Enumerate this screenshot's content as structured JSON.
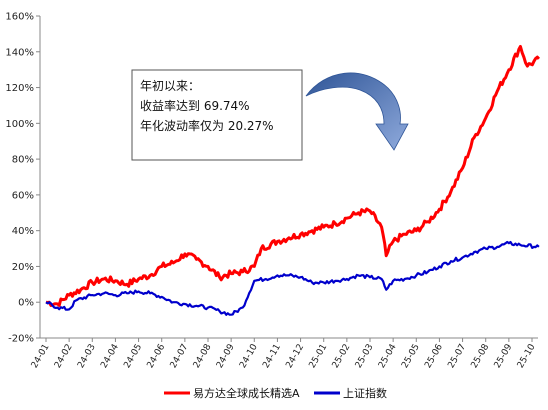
{
  "chart_data": {
    "type": "line",
    "x": [
      "24-01",
      "24-02",
      "24-03",
      "24-04",
      "24-05",
      "24-06",
      "24-07",
      "24-08",
      "24-09",
      "24-10",
      "24-11",
      "24-12",
      "25-01",
      "25-02",
      "25-03",
      "25-04",
      "25-05",
      "25-06",
      "25-07",
      "25-08",
      "25-09",
      "25-10"
    ],
    "ylim": [
      -20,
      160
    ],
    "yticks": [
      -20,
      0,
      20,
      40,
      60,
      80,
      100,
      120,
      140,
      160
    ],
    "ytick_labels": [
      "-20%",
      "0%",
      "20%",
      "40%",
      "60%",
      "80%",
      "100%",
      "120%",
      "140%",
      "160%"
    ],
    "series": [
      {
        "name": "易方达全球成长精选A",
        "color": "#ff0000",
        "values": [
          [
            0,
            0
          ],
          [
            0.5,
            -1
          ],
          [
            1,
            4
          ],
          [
            1.5,
            7
          ],
          [
            2,
            11
          ],
          [
            2.5,
            13
          ],
          [
            3,
            12
          ],
          [
            3.5,
            10
          ],
          [
            4,
            13
          ],
          [
            4.5,
            15
          ],
          [
            5,
            20
          ],
          [
            5.5,
            22
          ],
          [
            6,
            27
          ],
          [
            6.5,
            24
          ],
          [
            7,
            20
          ],
          [
            7.5,
            14
          ],
          [
            8,
            16
          ],
          [
            8.5,
            17
          ],
          [
            9,
            20
          ],
          [
            9.3,
            30
          ],
          [
            10,
            34
          ],
          [
            10.5,
            36
          ],
          [
            11,
            38
          ],
          [
            11.5,
            40
          ],
          [
            12,
            42
          ],
          [
            12.5,
            44
          ],
          [
            13,
            47
          ],
          [
            13.5,
            50
          ],
          [
            14,
            51
          ],
          [
            14.5,
            42
          ],
          [
            14.7,
            26
          ],
          [
            15,
            34
          ],
          [
            15.5,
            38
          ],
          [
            16,
            40
          ],
          [
            16.5,
            45
          ],
          [
            17,
            52
          ],
          [
            17.5,
            62
          ],
          [
            18,
            75
          ],
          [
            18.5,
            92
          ],
          [
            19,
            103
          ],
          [
            19.5,
            118
          ],
          [
            20,
            130
          ],
          [
            20.5,
            143
          ],
          [
            20.8,
            132
          ],
          [
            21.3,
            136
          ]
        ]
      },
      {
        "name": "上证指数",
        "color": "#0000cc",
        "values": [
          [
            0,
            0
          ],
          [
            0.5,
            -3
          ],
          [
            1,
            -4
          ],
          [
            1.3,
            1
          ],
          [
            2,
            4
          ],
          [
            2.5,
            5
          ],
          [
            3,
            4
          ],
          [
            3.5,
            5
          ],
          [
            4,
            6
          ],
          [
            4.5,
            5
          ],
          [
            5,
            3
          ],
          [
            5.5,
            0
          ],
          [
            6,
            -1
          ],
          [
            6.5,
            -2
          ],
          [
            7,
            -3
          ],
          [
            7.5,
            -5
          ],
          [
            8,
            -7
          ],
          [
            8.5,
            -3
          ],
          [
            9,
            12
          ],
          [
            9.5,
            13
          ],
          [
            10,
            15
          ],
          [
            10.5,
            15
          ],
          [
            11,
            14
          ],
          [
            11.5,
            11
          ],
          [
            12,
            11
          ],
          [
            12.5,
            12
          ],
          [
            13,
            13
          ],
          [
            13.5,
            15
          ],
          [
            14,
            14
          ],
          [
            14.5,
            13
          ],
          [
            14.7,
            7
          ],
          [
            15,
            12
          ],
          [
            15.5,
            13
          ],
          [
            16,
            15
          ],
          [
            16.5,
            17
          ],
          [
            17,
            20
          ],
          [
            17.5,
            23
          ],
          [
            18,
            25
          ],
          [
            18.5,
            28
          ],
          [
            19,
            30
          ],
          [
            19.5,
            31
          ],
          [
            20,
            33
          ],
          [
            20.5,
            32
          ],
          [
            21.3,
            31
          ]
        ]
      }
    ],
    "annotation": {
      "lines": [
        "年初以来：",
        "收益率达到 69.74%",
        "年化波动率仅为 20.27%"
      ]
    },
    "legend_position": "bottom",
    "arrow_color": "#4472c4"
  }
}
